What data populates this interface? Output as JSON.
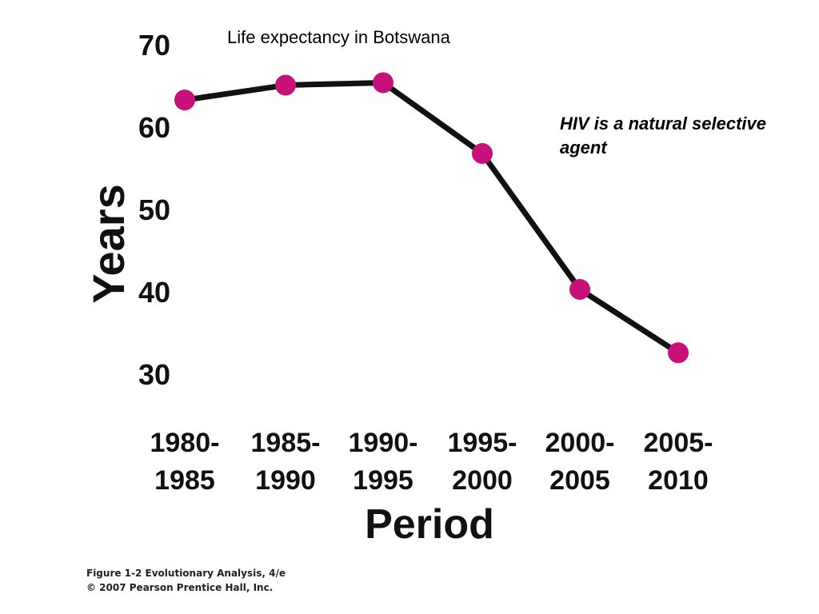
{
  "chart_data": {
    "type": "line",
    "title": "Life expectancy in Botswana",
    "xlabel": "Period",
    "ylabel": "Years",
    "categories": [
      [
        "1980-",
        "1985"
      ],
      [
        "1985-",
        "1990"
      ],
      [
        "1990-",
        "1995"
      ],
      [
        "1995-",
        "2000"
      ],
      [
        "2000-",
        "2005"
      ],
      [
        "2005-",
        "2010"
      ]
    ],
    "values": [
      63.1,
      64.9,
      65.2,
      56.6,
      40.1,
      32.4
    ],
    "yticks": [
      "70",
      "60",
      "50",
      "40",
      "30"
    ],
    "ylim": [
      30,
      70
    ],
    "grid": false,
    "legend": "none",
    "line_color": "#111111",
    "marker_color": "#C8107A"
  },
  "annotation": {
    "line1": "HIV is a natural selective",
    "line2": "agent"
  },
  "credit": {
    "line1": "Figure 1-2  Evolutionary Analysis, 4/e",
    "line2": "© 2007 Pearson Prentice Hall, Inc."
  }
}
